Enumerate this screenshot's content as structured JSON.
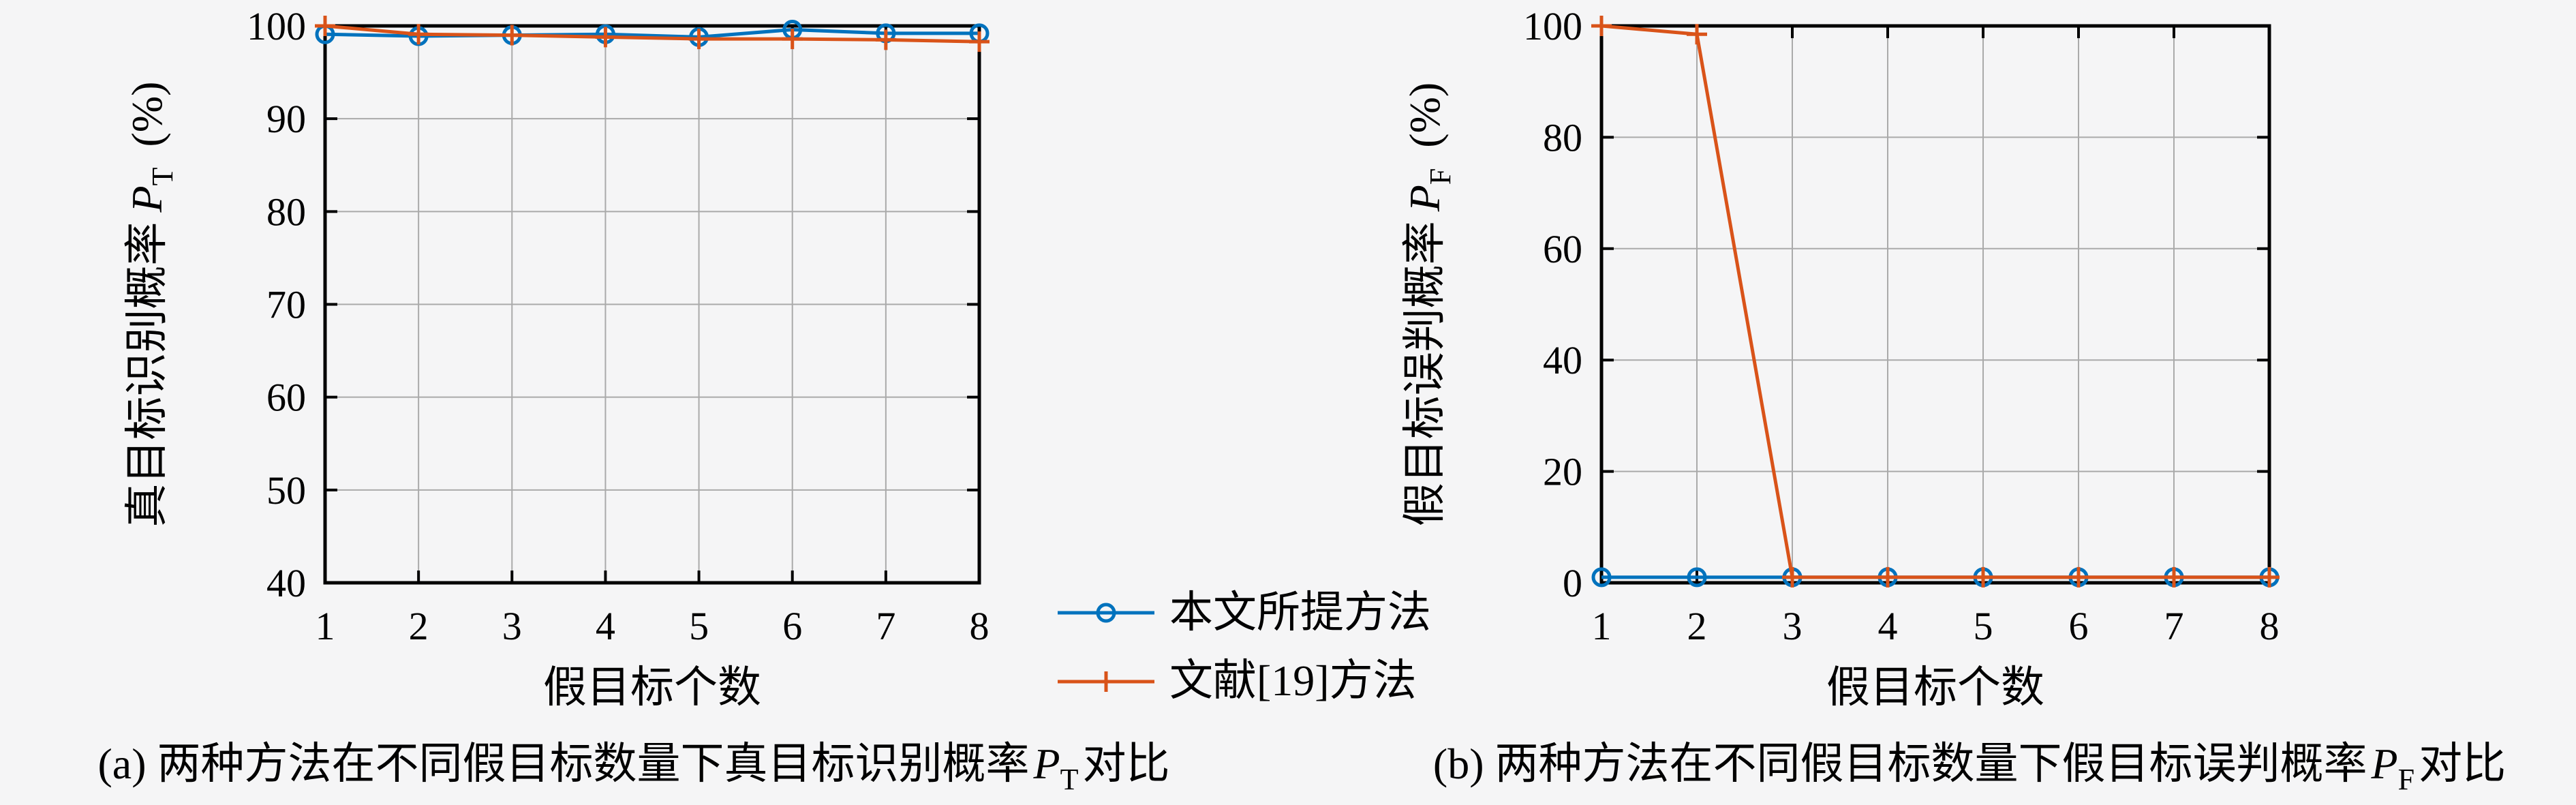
{
  "figure": {
    "background_color": "#f5f5f6",
    "axis_color": "#000000",
    "grid_color": "#aaaaaa"
  },
  "legend": {
    "items": [
      {
        "label": "本文所提方法",
        "color": "#0072BD",
        "marker": "circle"
      },
      {
        "label": "文献[19]方法",
        "color": "#D95319",
        "marker": "plus"
      }
    ]
  },
  "chart_data": [
    {
      "type": "line",
      "caption_prefix": "(a) 两种方法在不同假目标数量下真目标识别概率",
      "caption_var": "P",
      "caption_sub": "T",
      "caption_suffix": "对比",
      "xlabel": "假目标个数",
      "ylabel_prefix": "真目标识别概率",
      "ylabel_var": "P",
      "ylabel_sub": "T",
      "ylabel_suffix": "(%)",
      "x": [
        1,
        2,
        3,
        4,
        5,
        6,
        7,
        8
      ],
      "xlim": [
        1,
        8
      ],
      "ylim": [
        40,
        100
      ],
      "xticks": [
        1,
        2,
        3,
        4,
        5,
        6,
        7,
        8
      ],
      "yticks": [
        40,
        50,
        60,
        70,
        80,
        90,
        100
      ],
      "grid": true,
      "legend_position": "outside-right-bottom",
      "series": [
        {
          "name": "本文所提方法",
          "color": "#0072BD",
          "marker": "circle",
          "values": [
            99.1,
            98.9,
            99.0,
            99.1,
            98.8,
            99.6,
            99.2,
            99.2
          ]
        },
        {
          "name": "文献[19]方法",
          "color": "#D95319",
          "marker": "plus",
          "values": [
            100.0,
            99.1,
            99.0,
            98.8,
            98.6,
            98.6,
            98.5,
            98.3
          ]
        }
      ]
    },
    {
      "type": "line",
      "caption_prefix": "(b) 两种方法在不同假目标数量下假目标误判概率",
      "caption_var": "P",
      "caption_sub": "F",
      "caption_suffix": "对比",
      "xlabel": "假目标个数",
      "ylabel_prefix": "假目标误判概率",
      "ylabel_var": "P",
      "ylabel_sub": "F",
      "ylabel_suffix": "(%)",
      "x": [
        1,
        2,
        3,
        4,
        5,
        6,
        7,
        8
      ],
      "xlim": [
        1,
        8
      ],
      "ylim": [
        0,
        100
      ],
      "xticks": [
        1,
        2,
        3,
        4,
        5,
        6,
        7,
        8
      ],
      "yticks": [
        0,
        20,
        40,
        60,
        80,
        100
      ],
      "grid": true,
      "series": [
        {
          "name": "本文所提方法",
          "color": "#0072BD",
          "marker": "circle",
          "values": [
            1,
            1,
            1,
            1,
            1,
            1,
            1,
            1
          ]
        },
        {
          "name": "文献[19]方法",
          "color": "#D95319",
          "marker": "plus",
          "values": [
            100,
            98.5,
            1,
            1,
            1,
            1,
            1,
            1
          ]
        }
      ]
    }
  ]
}
